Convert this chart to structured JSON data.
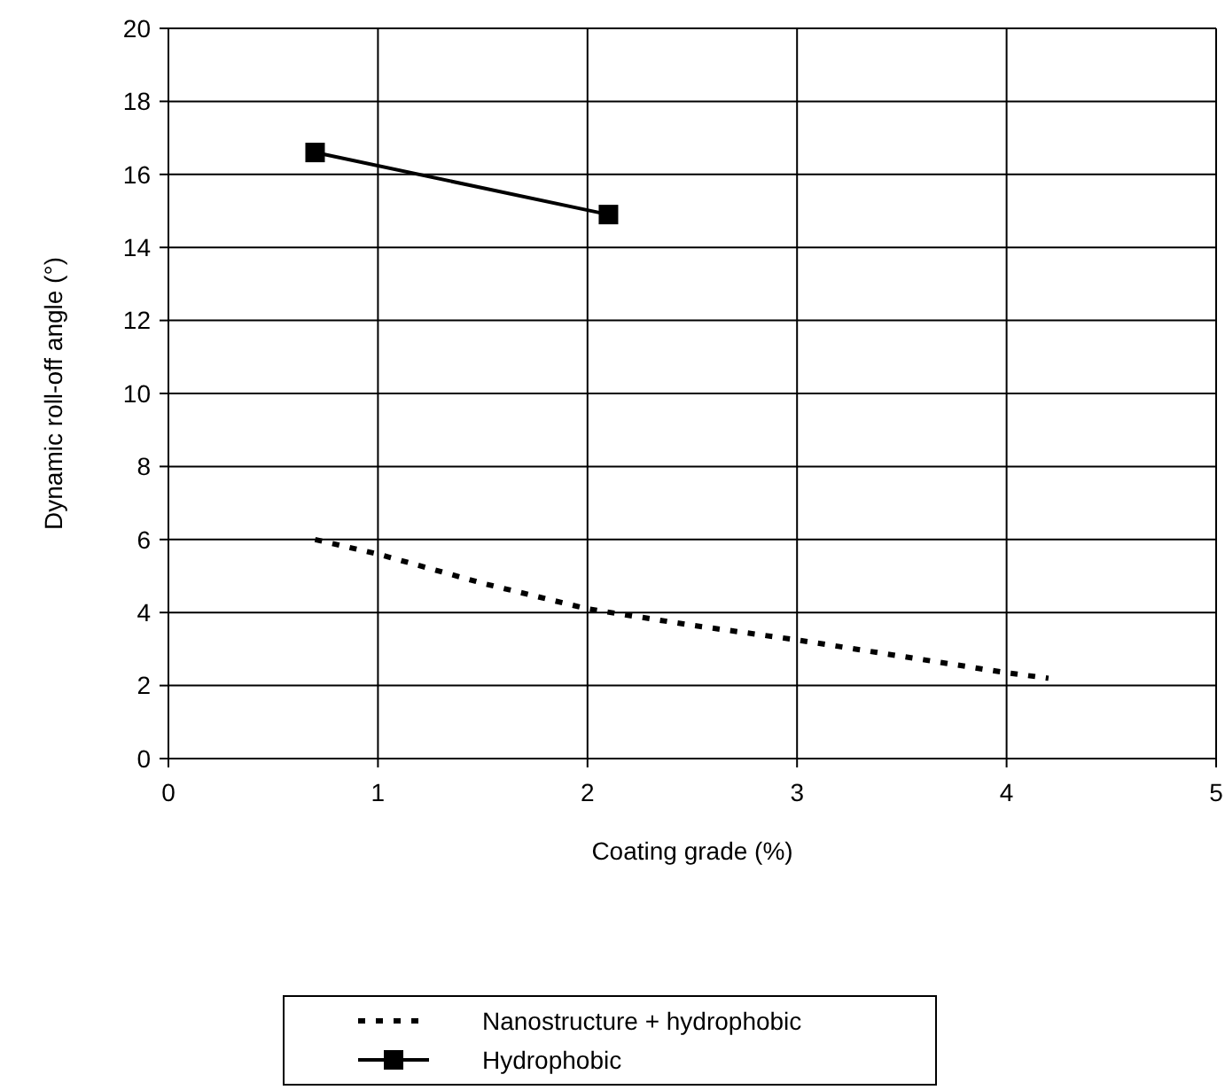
{
  "chart_data": {
    "type": "line",
    "xlabel": "Coating grade (%)",
    "ylabel": "Dynamic roll-off angle (°)",
    "xlim": [
      0,
      5
    ],
    "xticks": [
      0,
      1,
      2,
      3,
      4,
      5
    ],
    "ylim": [
      0,
      20
    ],
    "yticks": [
      0,
      2,
      4,
      6,
      8,
      10,
      12,
      14,
      16,
      18,
      20
    ],
    "grid": true,
    "legend": "bottom",
    "series": [
      {
        "name": "Nanostructure + hydrophobic",
        "color": "#000000",
        "line_style": "dotted",
        "marker": "none",
        "x": [
          0.7,
          1,
          1.5,
          2,
          2.5,
          3,
          3.5,
          4,
          4.2
        ],
        "values": [
          6,
          5.6,
          4.8,
          4.1,
          3.65,
          3.25,
          2.8,
          2.35,
          2.2
        ]
      },
      {
        "name": "Hydrophobic",
        "color": "#000000",
        "line_style": "solid",
        "marker": "square",
        "x": [
          0.7,
          2.1
        ],
        "values": [
          16.6,
          14.9
        ]
      }
    ]
  }
}
